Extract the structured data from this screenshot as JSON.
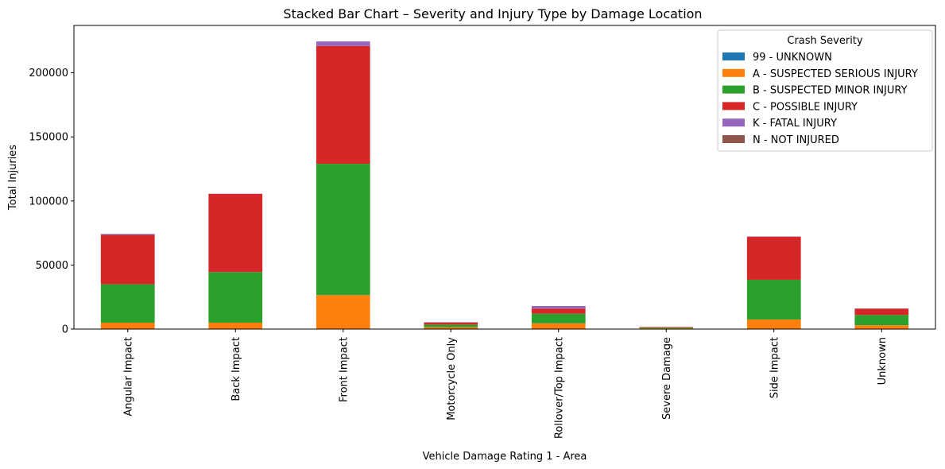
{
  "chart_data": {
    "type": "bar",
    "stacked": true,
    "title": "Stacked Bar Chart – Severity and Injury Type by Damage Location",
    "xlabel": "Vehicle Damage Rating 1 - Area",
    "ylabel": "Total Injuries",
    "ylim": [
      0,
      237000
    ],
    "yticks": [
      0,
      50000,
      100000,
      150000,
      200000
    ],
    "ytick_labels": [
      "0",
      "50000",
      "100000",
      "150000",
      "200000"
    ],
    "grid": false,
    "legend": {
      "title": "Crash Severity",
      "placement": "top-right"
    },
    "categories": [
      "Angular Impact",
      "Back Impact",
      "Front Impact",
      "Motorcycle Only",
      "Rollover/Top Impact",
      "Severe Damage",
      "Side Impact",
      "Unknown"
    ],
    "series": [
      {
        "name": "99 - UNKNOWN",
        "color": "#1f77b4",
        "values": [
          0,
          0,
          0,
          0,
          0,
          0,
          0,
          0
        ]
      },
      {
        "name": "A - SUSPECTED SERIOUS INJURY",
        "color": "#ff7f0e",
        "values": [
          5000,
          5000,
          26500,
          1500,
          4500,
          800,
          7500,
          3000
        ]
      },
      {
        "name": "B - SUSPECTED MINOR INJURY",
        "color": "#2ca02c",
        "values": [
          30000,
          39500,
          102500,
          2000,
          7500,
          500,
          31000,
          8000
        ]
      },
      {
        "name": "C - POSSIBLE INJURY",
        "color": "#d62728",
        "values": [
          38500,
          61000,
          92000,
          1500,
          4000,
          300,
          33500,
          5000
        ]
      },
      {
        "name": "K - FATAL INJURY",
        "color": "#9467bd",
        "values": [
          800,
          200,
          3500,
          300,
          2000,
          100,
          300,
          100
        ]
      },
      {
        "name": "N - NOT INJURED",
        "color": "#8c564b",
        "values": [
          0,
          0,
          0,
          100,
          0,
          50,
          0,
          0
        ]
      }
    ]
  }
}
